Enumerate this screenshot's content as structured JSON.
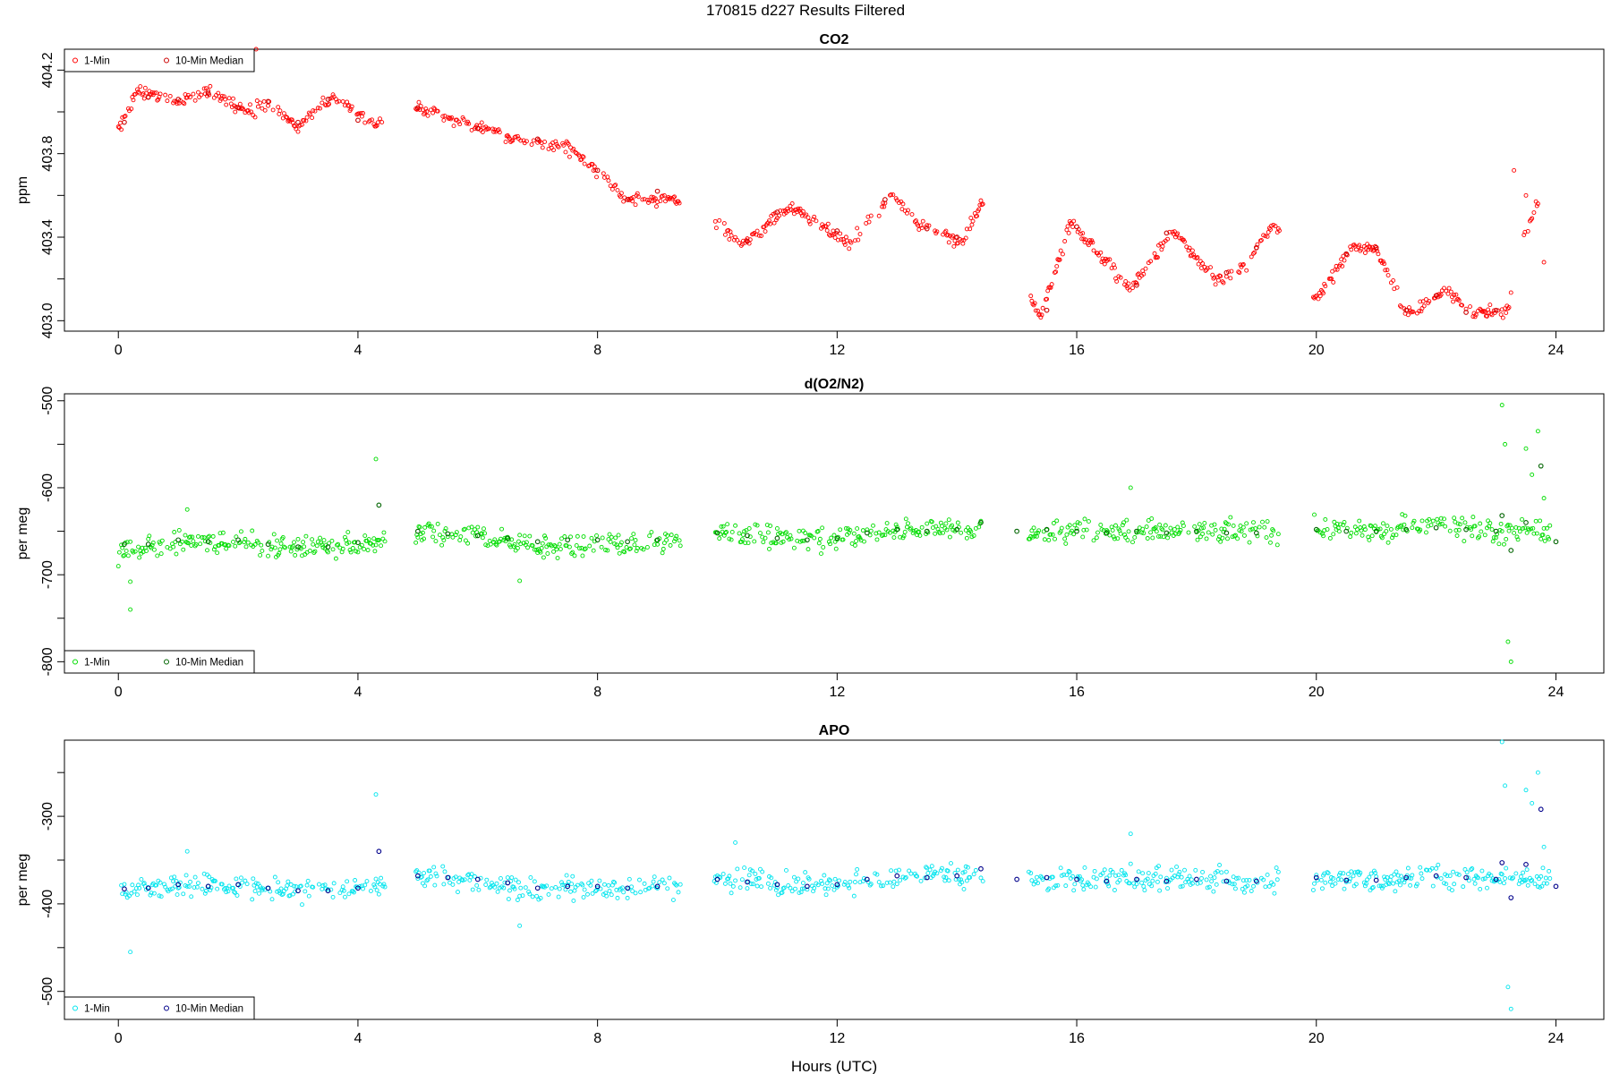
{
  "page_title": "170815   d227   Results Filtered",
  "chart_data": [
    {
      "type": "scatter",
      "title": "CO2",
      "xlabel": "",
      "ylabel": "ppm",
      "xlim": [
        -0.9,
        24.8
      ],
      "ylim": [
        402.95,
        404.3
      ],
      "xticks": [
        0,
        4,
        8,
        12,
        16,
        20,
        24
      ],
      "yticks": [
        403.0,
        403.4,
        403.8,
        404.2
      ],
      "ytick_labels": [
        "403.0",
        "403.4",
        "403.8",
        "404.2"
      ],
      "legend": {
        "placement": "top-left",
        "entries": [
          "1-Min",
          "10-Min Median"
        ]
      },
      "colors": {
        "one_min": "#ff0000",
        "median": "#cc0000"
      },
      "noise": 0.025,
      "knots": [
        [
          0.0,
          403.92
        ],
        [
          0.3,
          404.1
        ],
        [
          1.0,
          404.05
        ],
        [
          1.5,
          404.1
        ],
        [
          2.2,
          404.0
        ],
        [
          2.5,
          404.04
        ],
        [
          3.0,
          403.93
        ],
        [
          3.6,
          404.08
        ],
        [
          4.3,
          403.93
        ],
        [
          5.0,
          404.02
        ],
        [
          6.5,
          403.88
        ],
        [
          7.5,
          403.83
        ],
        [
          8.0,
          403.72
        ],
        [
          8.5,
          403.58
        ],
        [
          9.3,
          403.58
        ],
        [
          10.0,
          403.47
        ],
        [
          10.4,
          403.37
        ],
        [
          11.2,
          403.55
        ],
        [
          12.2,
          403.37
        ],
        [
          12.9,
          403.6
        ],
        [
          13.4,
          403.45
        ],
        [
          14.1,
          403.38
        ],
        [
          14.4,
          403.56
        ],
        [
          15.2,
          403.12
        ],
        [
          15.4,
          403.02
        ],
        [
          15.9,
          403.47
        ],
        [
          16.9,
          403.15
        ],
        [
          17.6,
          403.43
        ],
        [
          18.3,
          403.2
        ],
        [
          18.8,
          403.25
        ],
        [
          19.3,
          403.47
        ],
        [
          20.0,
          403.1
        ],
        [
          20.6,
          403.35
        ],
        [
          21.0,
          403.34
        ],
        [
          21.5,
          403.03
        ],
        [
          22.2,
          403.15
        ],
        [
          22.6,
          403.03
        ],
        [
          23.2,
          403.05
        ],
        [
          23.4,
          403.35
        ],
        [
          23.6,
          403.5
        ],
        [
          23.9,
          403.72
        ]
      ],
      "gaps": [
        [
          4.4,
          4.95
        ],
        [
          9.4,
          9.95
        ],
        [
          14.45,
          15.2
        ],
        [
          19.4,
          19.95
        ],
        [
          23.25,
          23.45
        ],
        [
          23.7,
          23.95
        ]
      ],
      "outliers": [
        [
          1.5,
          404.25
        ],
        [
          2.3,
          404.3
        ],
        [
          23.3,
          403.72
        ],
        [
          23.5,
          403.6
        ],
        [
          23.8,
          403.28
        ]
      ],
      "medians": [
        [
          0.1,
          403.95
        ],
        [
          0.5,
          404.07
        ],
        [
          1.0,
          404.06
        ],
        [
          1.5,
          404.09
        ],
        [
          2.0,
          404.02
        ],
        [
          2.5,
          404.05
        ],
        [
          3.0,
          403.95
        ],
        [
          3.5,
          404.06
        ],
        [
          4.0,
          403.96
        ],
        [
          5.0,
          404.02
        ],
        [
          6.0,
          403.92
        ],
        [
          7.0,
          403.87
        ],
        [
          8.0,
          403.72
        ],
        [
          8.5,
          403.58
        ],
        [
          9.0,
          403.62
        ],
        [
          10.5,
          403.38
        ],
        [
          11.0,
          403.52
        ],
        [
          12.0,
          403.43
        ],
        [
          12.8,
          403.58
        ],
        [
          13.5,
          403.44
        ],
        [
          14.0,
          403.4
        ],
        [
          15.5,
          403.05
        ],
        [
          16.0,
          403.45
        ],
        [
          17.0,
          403.17
        ],
        [
          17.5,
          403.42
        ],
        [
          18.5,
          403.23
        ],
        [
          19.0,
          403.35
        ],
        [
          20.5,
          403.32
        ],
        [
          21.0,
          403.35
        ],
        [
          21.5,
          403.05
        ],
        [
          22.0,
          403.12
        ],
        [
          22.5,
          403.04
        ],
        [
          23.0,
          403.05
        ]
      ]
    },
    {
      "type": "scatter",
      "title": "d(O2/N2)",
      "xlabel": "",
      "ylabel": "per meg",
      "xlim": [
        -0.9,
        24.8
      ],
      "ylim": [
        -813,
        -492
      ],
      "xticks": [
        0,
        4,
        8,
        12,
        16,
        20,
        24
      ],
      "yticks": [
        -500,
        -600,
        -700,
        -800
      ],
      "ytick_labels": [
        "-500",
        "-600",
        "-700",
        "-800"
      ],
      "legend": {
        "placement": "bottom-left",
        "entries": [
          "1-Min",
          "10-Min Median"
        ]
      },
      "colors": {
        "one_min": "#00dd00",
        "median": "#006400"
      },
      "noise": 11,
      "knots": [
        [
          0.0,
          -675
        ],
        [
          0.5,
          -668
        ],
        [
          1.0,
          -662
        ],
        [
          2.0,
          -662
        ],
        [
          3.0,
          -670
        ],
        [
          4.0,
          -665
        ],
        [
          4.3,
          -660
        ],
        [
          5.0,
          -650
        ],
        [
          6.0,
          -655
        ],
        [
          7.0,
          -668
        ],
        [
          8.0,
          -665
        ],
        [
          9.3,
          -660
        ],
        [
          10.0,
          -650
        ],
        [
          11.0,
          -658
        ],
        [
          12.0,
          -660
        ],
        [
          13.0,
          -648
        ],
        [
          14.4,
          -645
        ],
        [
          15.0,
          -650
        ],
        [
          16.0,
          -650
        ],
        [
          17.0,
          -650
        ],
        [
          18.0,
          -650
        ],
        [
          19.3,
          -652
        ],
        [
          20.0,
          -645
        ],
        [
          21.0,
          -650
        ],
        [
          22.0,
          -645
        ],
        [
          23.1,
          -650
        ],
        [
          23.9,
          -650
        ]
      ],
      "gaps": [
        [
          4.45,
          4.95
        ],
        [
          9.4,
          9.95
        ],
        [
          14.45,
          15.2
        ],
        [
          19.4,
          19.95
        ],
        [
          23.95,
          24.5
        ]
      ],
      "outliers": [
        [
          0.2,
          -740
        ],
        [
          0.2,
          -708
        ],
        [
          1.15,
          -625
        ],
        [
          4.3,
          -567
        ],
        [
          6.7,
          -707
        ],
        [
          16.9,
          -600
        ],
        [
          23.1,
          -505
        ],
        [
          23.15,
          -550
        ],
        [
          23.2,
          -777
        ],
        [
          23.25,
          -800
        ],
        [
          23.5,
          -555
        ],
        [
          23.6,
          -585
        ],
        [
          23.7,
          -535
        ],
        [
          23.8,
          -612
        ]
      ],
      "medians": [
        [
          0.1,
          -665
        ],
        [
          0.5,
          -665
        ],
        [
          1.0,
          -660
        ],
        [
          1.5,
          -662
        ],
        [
          2.0,
          -660
        ],
        [
          2.5,
          -665
        ],
        [
          3.0,
          -668
        ],
        [
          3.5,
          -668
        ],
        [
          4.0,
          -663
        ],
        [
          4.35,
          -620
        ],
        [
          5.0,
          -650
        ],
        [
          5.5,
          -653
        ],
        [
          6.0,
          -655
        ],
        [
          6.5,
          -658
        ],
        [
          7.0,
          -662
        ],
        [
          7.5,
          -660
        ],
        [
          8.0,
          -660
        ],
        [
          8.5,
          -662
        ],
        [
          9.0,
          -660
        ],
        [
          10.0,
          -652
        ],
        [
          10.5,
          -655
        ],
        [
          11.0,
          -658
        ],
        [
          11.5,
          -660
        ],
        [
          12.0,
          -658
        ],
        [
          12.5,
          -652
        ],
        [
          13.0,
          -648
        ],
        [
          13.5,
          -650
        ],
        [
          14.0,
          -648
        ],
        [
          14.4,
          -640
        ],
        [
          15.0,
          -650
        ],
        [
          15.5,
          -648
        ],
        [
          16.0,
          -650
        ],
        [
          16.5,
          -652
        ],
        [
          17.0,
          -650
        ],
        [
          17.5,
          -652
        ],
        [
          18.0,
          -650
        ],
        [
          18.5,
          -652
        ],
        [
          19.0,
          -652
        ],
        [
          20.0,
          -648
        ],
        [
          20.5,
          -650
        ],
        [
          21.0,
          -650
        ],
        [
          21.5,
          -648
        ],
        [
          22.0,
          -646
        ],
        [
          22.5,
          -648
        ],
        [
          23.0,
          -650
        ],
        [
          23.1,
          -632
        ],
        [
          23.25,
          -672
        ],
        [
          23.5,
          -640
        ],
        [
          23.75,
          -575
        ],
        [
          24.0,
          -662
        ]
      ]
    },
    {
      "type": "scatter",
      "title": "APO",
      "xlabel": "Hours (UTC)",
      "ylabel": "per meg",
      "xlim": [
        -0.9,
        24.8
      ],
      "ylim": [
        -532,
        -213
      ],
      "xticks": [
        0,
        4,
        8,
        12,
        16,
        20,
        24
      ],
      "yticks": [
        -300,
        -400,
        -500
      ],
      "ytick_labels": [
        "-300",
        "-400",
        "-500"
      ],
      "legend": {
        "placement": "bottom-left",
        "entries": [
          "1-Min",
          "10-Min Median"
        ]
      },
      "colors": {
        "one_min": "#00e5ee",
        "median": "#00008b"
      },
      "noise": 11,
      "knots": [
        [
          0.0,
          -385
        ],
        [
          0.5,
          -382
        ],
        [
          1.0,
          -378
        ],
        [
          2.0,
          -378
        ],
        [
          3.0,
          -385
        ],
        [
          4.0,
          -382
        ],
        [
          4.3,
          -378
        ],
        [
          5.0,
          -368
        ],
        [
          6.0,
          -372
        ],
        [
          7.0,
          -385
        ],
        [
          8.0,
          -382
        ],
        [
          9.3,
          -380
        ],
        [
          10.0,
          -372
        ],
        [
          11.0,
          -378
        ],
        [
          12.0,
          -380
        ],
        [
          13.0,
          -368
        ],
        [
          14.4,
          -365
        ],
        [
          15.0,
          -372
        ],
        [
          16.0,
          -372
        ],
        [
          17.0,
          -372
        ],
        [
          18.0,
          -372
        ],
        [
          19.3,
          -375
        ],
        [
          20.0,
          -370
        ],
        [
          21.0,
          -373
        ],
        [
          22.0,
          -368
        ],
        [
          23.1,
          -372
        ],
        [
          23.9,
          -372
        ]
      ],
      "gaps": [
        [
          4.45,
          4.95
        ],
        [
          9.4,
          9.95
        ],
        [
          14.45,
          15.2
        ],
        [
          19.4,
          19.95
        ],
        [
          23.95,
          24.5
        ]
      ],
      "outliers": [
        [
          0.2,
          -455
        ],
        [
          1.15,
          -340
        ],
        [
          4.3,
          -275
        ],
        [
          6.7,
          -425
        ],
        [
          16.9,
          -320
        ],
        [
          10.3,
          -330
        ],
        [
          23.1,
          -215
        ],
        [
          23.15,
          -265
        ],
        [
          23.2,
          -495
        ],
        [
          23.25,
          -520
        ],
        [
          23.5,
          -270
        ],
        [
          23.6,
          -285
        ],
        [
          23.7,
          -250
        ],
        [
          23.8,
          -335
        ]
      ],
      "medians": [
        [
          0.1,
          -383
        ],
        [
          0.5,
          -382
        ],
        [
          1.0,
          -378
        ],
        [
          1.5,
          -380
        ],
        [
          2.0,
          -378
        ],
        [
          2.5,
          -382
        ],
        [
          3.0,
          -385
        ],
        [
          3.5,
          -385
        ],
        [
          4.0,
          -382
        ],
        [
          4.35,
          -340
        ],
        [
          5.0,
          -368
        ],
        [
          5.5,
          -370
        ],
        [
          6.0,
          -372
        ],
        [
          6.5,
          -376
        ],
        [
          7.0,
          -382
        ],
        [
          7.5,
          -380
        ],
        [
          8.0,
          -380
        ],
        [
          8.5,
          -382
        ],
        [
          9.0,
          -380
        ],
        [
          10.0,
          -372
        ],
        [
          10.5,
          -375
        ],
        [
          11.0,
          -378
        ],
        [
          11.5,
          -380
        ],
        [
          12.0,
          -378
        ],
        [
          12.5,
          -372
        ],
        [
          13.0,
          -368
        ],
        [
          13.5,
          -370
        ],
        [
          14.0,
          -368
        ],
        [
          14.4,
          -360
        ],
        [
          15.0,
          -372
        ],
        [
          15.5,
          -370
        ],
        [
          16.0,
          -372
        ],
        [
          16.5,
          -374
        ],
        [
          17.0,
          -372
        ],
        [
          17.5,
          -374
        ],
        [
          18.0,
          -372
        ],
        [
          18.5,
          -374
        ],
        [
          19.0,
          -374
        ],
        [
          20.0,
          -370
        ],
        [
          20.5,
          -373
        ],
        [
          21.0,
          -373
        ],
        [
          21.5,
          -370
        ],
        [
          22.0,
          -368
        ],
        [
          22.5,
          -370
        ],
        [
          23.0,
          -372
        ],
        [
          23.1,
          -353
        ],
        [
          23.25,
          -393
        ],
        [
          23.5,
          -355
        ],
        [
          23.75,
          -292
        ],
        [
          24.0,
          -380
        ]
      ]
    }
  ]
}
